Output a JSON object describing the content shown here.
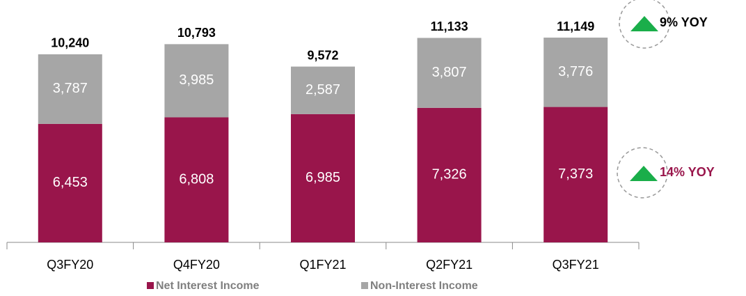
{
  "chart_data": {
    "type": "stacked_bar",
    "categories": [
      "Q3FY20",
      "Q4FY20",
      "Q1FY21",
      "Q2FY21",
      "Q3FY21"
    ],
    "series": [
      {
        "name": "Net Interest Income",
        "color": "#99154b",
        "values": [
          6453,
          6808,
          6985,
          7326,
          7373
        ],
        "value_labels": [
          "6,453",
          "6,808",
          "6,985",
          "7,326",
          "7,373"
        ]
      },
      {
        "name": "Non-Interest Income",
        "color": "#a6a6a6",
        "values": [
          3787,
          3985,
          2587,
          3807,
          3776
        ],
        "value_labels": [
          "3,787",
          "3,985",
          "2,587",
          "3,807",
          "3,776"
        ]
      }
    ],
    "totals": {
      "values": [
        10240,
        10793,
        9572,
        11133,
        11149
      ],
      "value_labels": [
        "10,240",
        "10,793",
        "9,572",
        "11,133",
        "11,149"
      ]
    },
    "annotations": [
      {
        "text": "9% YOY",
        "color": "#000000"
      },
      {
        "text": "14% YOY",
        "color": "#99154b"
      }
    ]
  }
}
